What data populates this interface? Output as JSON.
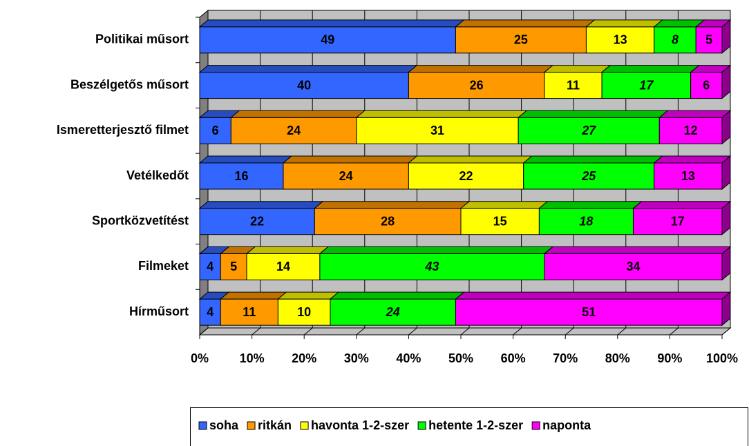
{
  "chart_data": {
    "type": "stacked-bar-horizontal-3d",
    "categories": [
      "Politikai műsort",
      "Beszélgetős műsort",
      "Ismeretterjesztő filmet",
      "Vetélkedőt",
      "Sportközvetítést",
      "Filmeket",
      "Hírműsort"
    ],
    "series": [
      {
        "name": "soha",
        "color": "#3366ff",
        "values": [
          49,
          40,
          6,
          16,
          22,
          4,
          4
        ]
      },
      {
        "name": "ritkán",
        "color": "#ff9900",
        "values": [
          25,
          26,
          24,
          24,
          28,
          5,
          11
        ]
      },
      {
        "name": "havonta 1-2-szer",
        "color": "#ffff00",
        "values": [
          13,
          11,
          31,
          22,
          15,
          14,
          10
        ]
      },
      {
        "name": "hetente 1-2-szer",
        "color": "#00ff00",
        "values": [
          8,
          17,
          27,
          25,
          18,
          43,
          24
        ],
        "italic_labels": true
      },
      {
        "name": "naponta",
        "color": "#ff00ff",
        "values": [
          5,
          6,
          12,
          13,
          17,
          34,
          51
        ]
      }
    ],
    "xlim": [
      0,
      100
    ],
    "xticks": [
      {
        "value": 0,
        "label": "0%"
      },
      {
        "value": 10,
        "label": "10%"
      },
      {
        "value": 20,
        "label": "20%"
      },
      {
        "value": 30,
        "label": "30%"
      },
      {
        "value": 40,
        "label": "40%"
      },
      {
        "value": 50,
        "label": "50%"
      },
      {
        "value": 60,
        "label": "60%"
      },
      {
        "value": 70,
        "label": "70%"
      },
      {
        "value": 80,
        "label": "80%"
      },
      {
        "value": 90,
        "label": "90%"
      },
      {
        "value": 100,
        "label": "100%"
      }
    ],
    "grid": true,
    "legend": "bottom"
  }
}
